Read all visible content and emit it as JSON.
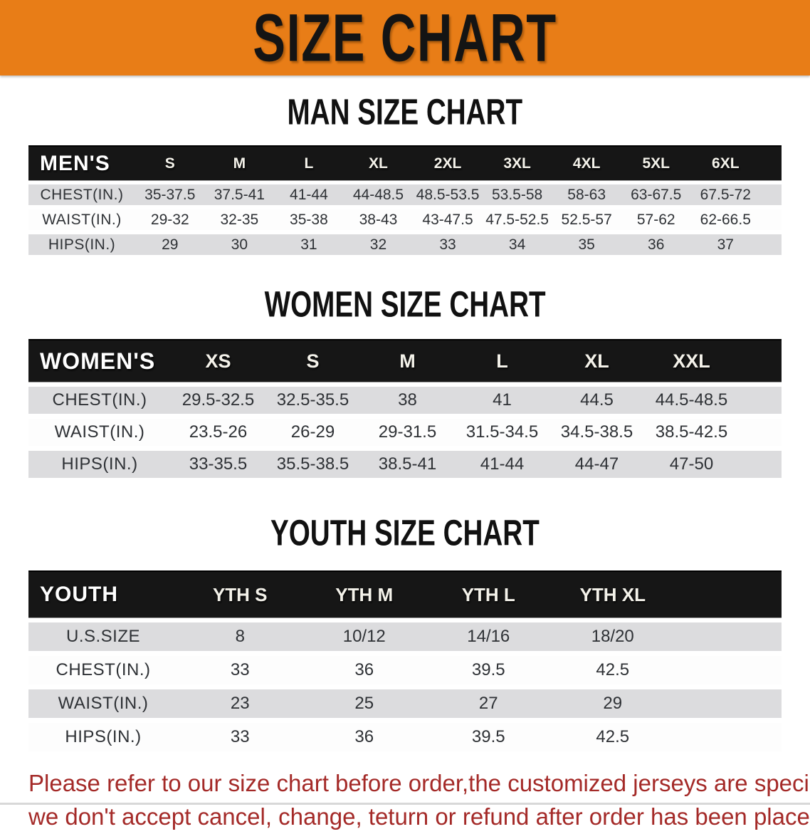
{
  "banner": {
    "title": "SIZE CHART",
    "bg_color": "#E87D17"
  },
  "sections": [
    {
      "id": "men",
      "heading": "MAN SIZE CHART",
      "header_label": "MEN'S",
      "columns": [
        "S",
        "M",
        "L",
        "XL",
        "2XL",
        "3XL",
        "4XL",
        "5XL",
        "6XL"
      ],
      "rows": [
        {
          "label": "CHEST(IN.)",
          "values": [
            "35-37.5",
            "37.5-41",
            "41-44",
            "44-48.5",
            "48.5-53.5",
            "53.5-58",
            "58-63",
            "63-67.5",
            "67.5-72"
          ]
        },
        {
          "label": "WAIST(IN.)",
          "values": [
            "29-32",
            "32-35",
            "35-38",
            "38-43",
            "43-47.5",
            "47.5-52.5",
            "52.5-57",
            "57-62",
            "62-66.5"
          ]
        },
        {
          "label": "HIPS(IN.)",
          "values": [
            "29",
            "30",
            "31",
            "32",
            "33",
            "34",
            "35",
            "36",
            "37"
          ]
        }
      ]
    },
    {
      "id": "women",
      "heading": "WOMEN SIZE CHART",
      "header_label": "WOMEN'S",
      "columns": [
        "XS",
        "S",
        "M",
        "L",
        "XL",
        "XXL"
      ],
      "rows": [
        {
          "label": "CHEST(IN.)",
          "values": [
            "29.5-32.5",
            "32.5-35.5",
            "38",
            "41",
            "44.5",
            "44.5-48.5"
          ]
        },
        {
          "label": "WAIST(IN.)",
          "values": [
            "23.5-26",
            "26-29",
            "29-31.5",
            "31.5-34.5",
            "34.5-38.5",
            "38.5-42.5"
          ]
        },
        {
          "label": "HIPS(IN.)",
          "values": [
            "33-35.5",
            "35.5-38.5",
            "38.5-41",
            "41-44",
            "44-47",
            "47-50"
          ]
        }
      ]
    },
    {
      "id": "youth",
      "heading": "YOUTH SIZE CHART",
      "header_label": "YOUTH",
      "columns": [
        "YTH S",
        "YTH M",
        "YTH L",
        "YTH XL"
      ],
      "rows": [
        {
          "label": "U.S.SIZE",
          "values": [
            "8",
            "10/12",
            "14/16",
            "18/20"
          ]
        },
        {
          "label": "CHEST(IN.)",
          "values": [
            "33",
            "36",
            "39.5",
            "42.5"
          ]
        },
        {
          "label": "WAIST(IN.)",
          "values": [
            "23",
            "25",
            "27",
            "29"
          ]
        },
        {
          "label": "HIPS(IN.)",
          "values": [
            "33",
            "36",
            "39.5",
            "42.5"
          ]
        }
      ]
    }
  ],
  "disclaimer": {
    "line1": "Please refer to our size chart before order,the customized jerseys are special products,",
    "line2": "we don't accept cancel, change, teturn or refund after order has been placed!",
    "color": "#A42A28"
  }
}
